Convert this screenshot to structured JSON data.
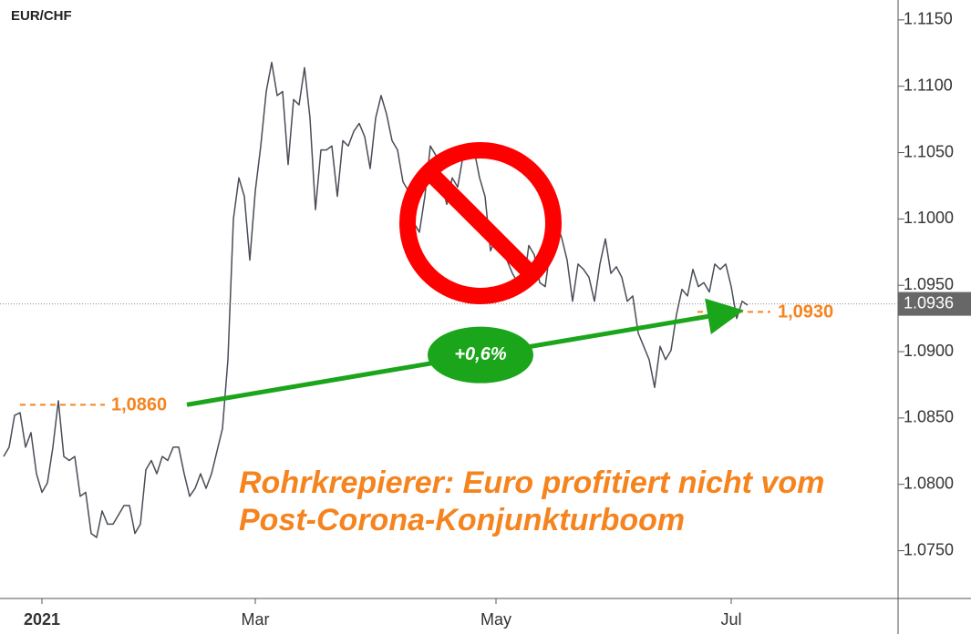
{
  "chart_data": {
    "type": "line",
    "title": "EUR/CHF",
    "color": "#4a4d57",
    "categories": [
      null,
      null,
      null,
      null,
      null,
      null,
      null,
      "2021",
      null,
      null,
      null,
      null,
      null,
      null,
      null,
      null,
      null,
      null,
      null,
      null,
      null,
      null,
      null,
      null,
      null,
      null,
      null,
      null,
      null,
      null,
      null,
      null,
      null,
      null,
      null,
      null,
      null,
      null,
      null,
      null,
      null,
      null,
      null,
      null,
      null,
      null,
      "Mar",
      null,
      null,
      null,
      null,
      null,
      null,
      null,
      null,
      null,
      null,
      null,
      null,
      null,
      null,
      null,
      null,
      null,
      null,
      null,
      null,
      null,
      null,
      null,
      null,
      null,
      null,
      null,
      null,
      null,
      null,
      null,
      null,
      null,
      null,
      null,
      null,
      null,
      null,
      null,
      null,
      null,
      null,
      null,
      "May",
      null,
      null,
      null,
      null,
      null,
      null,
      null,
      null,
      null,
      null,
      null,
      null,
      null,
      null,
      null,
      null,
      null,
      null,
      null,
      null,
      null,
      null,
      null,
      null,
      null,
      null,
      null,
      null,
      null,
      null,
      null,
      null,
      null,
      null,
      null,
      null,
      null,
      null,
      null,
      null,
      null,
      null,
      "Jul",
      null,
      null,
      null
    ],
    "values": [
      1.0821,
      1.0828,
      1.0852,
      1.0854,
      1.0828,
      1.0839,
      1.0808,
      1.0794,
      1.0801,
      1.0828,
      1.0863,
      1.0821,
      1.0818,
      1.0821,
      1.0791,
      1.0794,
      1.0763,
      1.076,
      1.078,
      1.077,
      1.077,
      1.0777,
      1.0784,
      1.0784,
      1.0763,
      1.077,
      1.0811,
      1.0818,
      1.0808,
      1.0821,
      1.0818,
      1.0828,
      1.0828,
      1.0808,
      1.0791,
      1.0797,
      1.0808,
      1.0797,
      1.0808,
      1.0825,
      1.0842,
      1.0894,
      1.1,
      1.1031,
      1.1017,
      1.0969,
      1.1021,
      1.1055,
      1.1096,
      1.1118,
      1.1093,
      1.1096,
      1.1041,
      1.109,
      1.1086,
      1.1114,
      1.1076,
      1.1007,
      1.1052,
      1.1052,
      1.1055,
      1.1017,
      1.1059,
      1.1055,
      1.1066,
      1.1072,
      1.1062,
      1.1038,
      1.1076,
      1.1093,
      1.1079,
      1.1059,
      1.1052,
      1.1028,
      1.1021,
      1.0997,
      1.099,
      1.1017,
      1.1055,
      1.1048,
      1.1028,
      1.1011,
      1.1031,
      1.1024,
      1.1048,
      1.1055,
      1.1052,
      1.1031,
      1.1017,
      1.0976,
      1.0986,
      1.098,
      1.0969,
      1.0959,
      1.0952,
      1.0949,
      1.098,
      1.0973,
      1.0952,
      1.0949,
      1.098,
      1.0997,
      1.0986,
      1.0969,
      1.0938,
      1.0966,
      1.0962,
      1.0956,
      1.0938,
      1.0966,
      1.0985,
      1.0959,
      1.0964,
      1.0956,
      1.0938,
      1.0942,
      1.0914,
      1.0904,
      1.0894,
      1.0873,
      1.0904,
      1.0894,
      1.0901,
      1.0928,
      1.0947,
      1.0942,
      1.0962,
      1.0949,
      1.0952,
      1.0945,
      1.0966,
      1.0962,
      1.0966,
      1.0949,
      1.0925,
      1.0938,
      1.0935
    ],
    "ylim": [
      1.0714,
      1.1165
    ],
    "yticks": [
      {
        "value": 1.075,
        "label": "1.0750"
      },
      {
        "value": 1.08,
        "label": "1.0800"
      },
      {
        "value": 1.085,
        "label": "1.0850"
      },
      {
        "value": 1.09,
        "label": "1.0900"
      },
      {
        "value": 1.095,
        "label": "1.0950"
      },
      {
        "value": 1.1,
        "label": "1.1000"
      },
      {
        "value": 1.105,
        "label": "1.1050"
      },
      {
        "value": 1.11,
        "label": "1.1100"
      },
      {
        "value": 1.115,
        "label": "1.1150"
      }
    ],
    "last_value": 1.0936,
    "level_start": {
      "label": "1,0860",
      "value": 1.086
    },
    "level_end": {
      "label": "1,0930",
      "value": 1.093
    },
    "change_label": "+0,6%",
    "headline": [
      "Rohrkrepierer: Euro profitiert nicht vom",
      "Post-Corona-Konjunkturboom"
    ]
  }
}
